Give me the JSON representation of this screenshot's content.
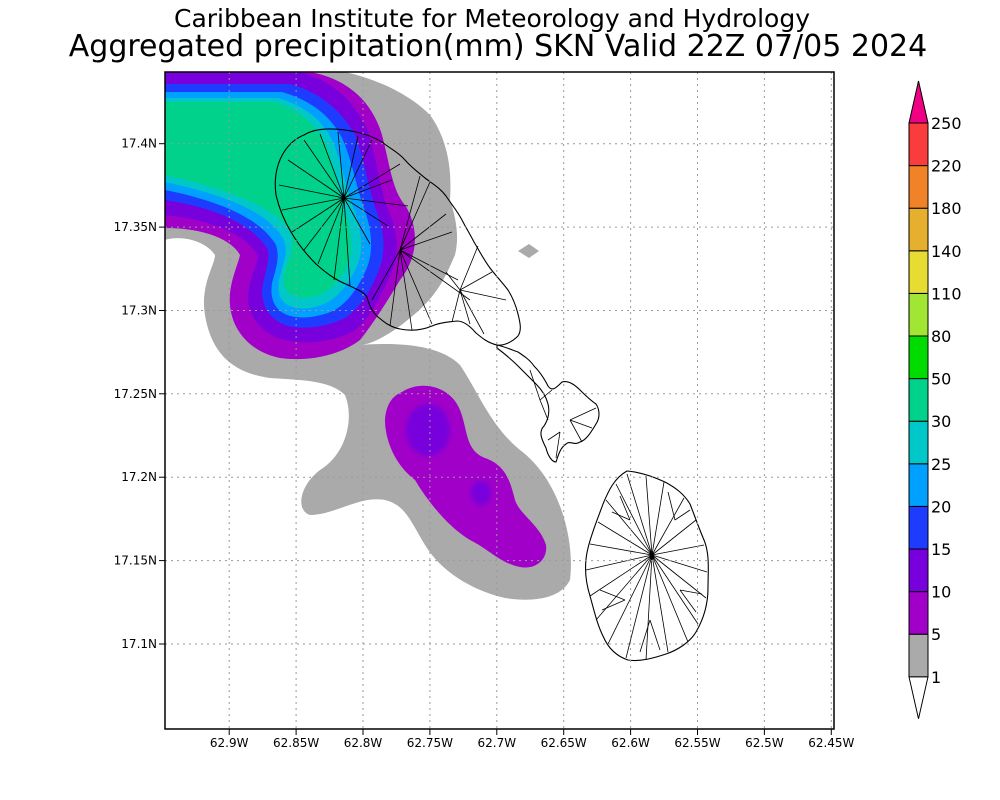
{
  "header": {
    "line1": "Caribbean Institute for Meteorology and Hydrology",
    "line2": "Aggregated precipitation(mm) SKN Valid 22Z 07/05 2024"
  },
  "map": {
    "lon_range": [
      -62.948,
      -62.448
    ],
    "lat_range": [
      17.049,
      17.443
    ],
    "grid": "dotted",
    "lat_ticks": [
      {
        "value": 17.4,
        "label": "17.4N"
      },
      {
        "value": 17.35,
        "label": "17.35N"
      },
      {
        "value": 17.3,
        "label": "17.3N"
      },
      {
        "value": 17.25,
        "label": "17.25N"
      },
      {
        "value": 17.2,
        "label": "17.2N"
      },
      {
        "value": 17.15,
        "label": "17.15N"
      },
      {
        "value": 17.1,
        "label": "17.1N"
      }
    ],
    "lon_ticks": [
      {
        "value": -62.9,
        "label": "62.9W"
      },
      {
        "value": -62.85,
        "label": "62.85W"
      },
      {
        "value": -62.8,
        "label": "62.8W"
      },
      {
        "value": -62.75,
        "label": "62.75W"
      },
      {
        "value": -62.7,
        "label": "62.7W"
      },
      {
        "value": -62.65,
        "label": "62.65W"
      },
      {
        "value": -62.6,
        "label": "62.6W"
      },
      {
        "value": -62.55,
        "label": "62.55W"
      },
      {
        "value": -62.5,
        "label": "62.5W"
      },
      {
        "value": -62.45,
        "label": "62.45W"
      }
    ]
  },
  "colorbar": {
    "levels": [
      {
        "label": "1",
        "color": "#aaaaaa"
      },
      {
        "label": "5",
        "color": "#a000c8"
      },
      {
        "label": "10",
        "color": "#7800dc"
      },
      {
        "label": "15",
        "color": "#1e3cff"
      },
      {
        "label": "20",
        "color": "#00a0ff"
      },
      {
        "label": "25",
        "color": "#00c8c8"
      },
      {
        "label": "30",
        "color": "#00d28c"
      },
      {
        "label": "50",
        "color": "#00dc00"
      },
      {
        "label": "80",
        "color": "#a0e632"
      },
      {
        "label": "110",
        "color": "#e6dc32"
      },
      {
        "label": "140",
        "color": "#e6af2d"
      },
      {
        "label": "180",
        "color": "#f08228"
      },
      {
        "label": "220",
        "color": "#fa3c3c"
      },
      {
        "label": "250",
        "color": "#f00082"
      }
    ],
    "under_color": "#ffffff",
    "over_color": "#f00082"
  }
}
